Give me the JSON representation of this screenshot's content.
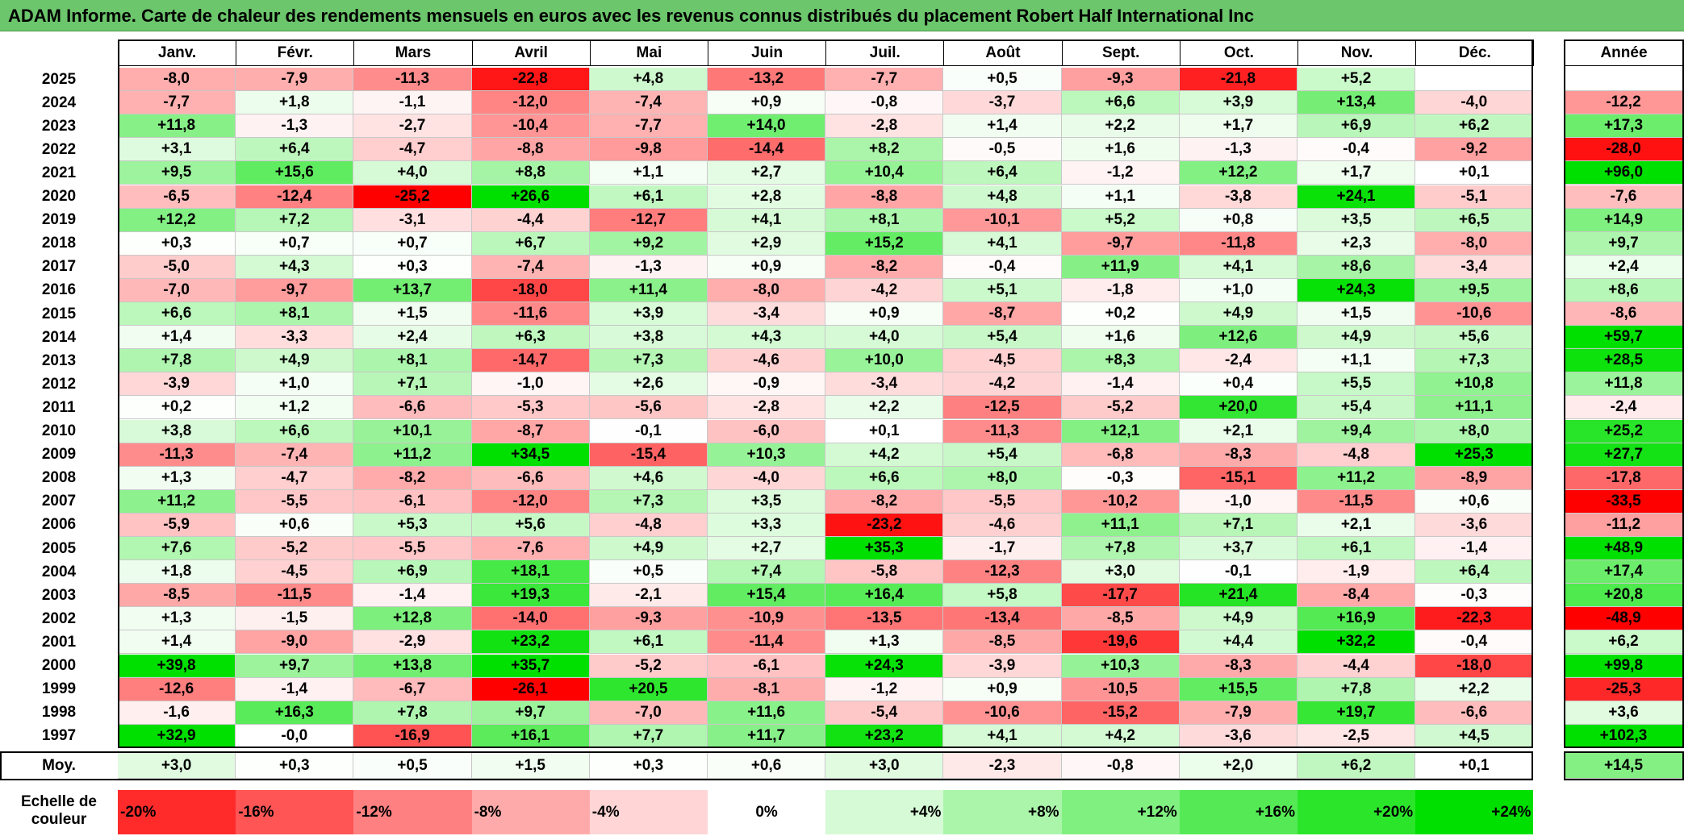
{
  "title": "ADAM Informe. Carte de chaleur des rendements mensuels en euros avec les revenus connus distribués du placement Robert Half International Inc",
  "chart_data": {
    "type": "heatmap",
    "title": "ADAM Informe. Carte de chaleur des rendements mensuels en euros avec les revenus connus distribués du placement Robert Half International Inc",
    "columns": [
      "Janv.",
      "Févr.",
      "Mars",
      "Avril",
      "Mai",
      "Juin",
      "Juil.",
      "Août",
      "Sept.",
      "Oct.",
      "Nov.",
      "Déc."
    ],
    "annual_label": "Année",
    "rows": [
      {
        "year": "2025",
        "months": [
          "-8,0",
          "-7,9",
          "-11,3",
          "-22,8",
          "+4,8",
          "-13,2",
          "-7,7",
          "+0,5",
          "-9,3",
          "-21,8",
          "+5,2",
          ""
        ],
        "annual": ""
      },
      {
        "year": "2024",
        "months": [
          "-7,7",
          "+1,8",
          "-1,1",
          "-12,0",
          "-7,4",
          "+0,9",
          "-0,8",
          "-3,7",
          "+6,6",
          "+3,9",
          "+13,4",
          "-4,0"
        ],
        "annual": "-12,2"
      },
      {
        "year": "2023",
        "months": [
          "+11,8",
          "-1,3",
          "-2,7",
          "-10,4",
          "-7,7",
          "+14,0",
          "-2,8",
          "+1,4",
          "+2,2",
          "+1,7",
          "+6,9",
          "+6,2"
        ],
        "annual": "+17,3"
      },
      {
        "year": "2022",
        "months": [
          "+3,1",
          "+6,4",
          "-4,7",
          "-8,8",
          "-9,8",
          "-14,4",
          "+8,2",
          "-0,5",
          "+1,6",
          "-1,3",
          "-0,4",
          "-9,2"
        ],
        "annual": "-28,0"
      },
      {
        "year": "2021",
        "months": [
          "+9,5",
          "+15,6",
          "+4,0",
          "+8,8",
          "+1,1",
          "+2,7",
          "+10,4",
          "+6,4",
          "-1,2",
          "+12,2",
          "+1,7",
          "+0,1"
        ],
        "annual": "+96,0"
      },
      {
        "year": "2020",
        "months": [
          "-6,5",
          "-12,4",
          "-25,2",
          "+26,6",
          "+6,1",
          "+2,8",
          "-8,8",
          "+4,8",
          "+1,1",
          "-3,8",
          "+24,1",
          "-5,1"
        ],
        "annual": "-7,6"
      },
      {
        "year": "2019",
        "months": [
          "+12,2",
          "+7,2",
          "-3,1",
          "-4,4",
          "-12,7",
          "+4,1",
          "+8,1",
          "-10,1",
          "+5,2",
          "+0,8",
          "+3,5",
          "+6,5"
        ],
        "annual": "+14,9"
      },
      {
        "year": "2018",
        "months": [
          "+0,3",
          "+0,7",
          "+0,7",
          "+6,7",
          "+9,2",
          "+2,9",
          "+15,2",
          "+4,1",
          "-9,7",
          "-11,8",
          "+2,3",
          "-8,0"
        ],
        "annual": "+9,7"
      },
      {
        "year": "2017",
        "months": [
          "-5,0",
          "+4,3",
          "+0,3",
          "-7,4",
          "-1,3",
          "+0,9",
          "-8,2",
          "-0,4",
          "+11,9",
          "+4,1",
          "+8,6",
          "-3,4"
        ],
        "annual": "+2,4"
      },
      {
        "year": "2016",
        "months": [
          "-7,0",
          "-9,7",
          "+13,7",
          "-18,0",
          "+11,4",
          "-8,0",
          "-4,2",
          "+5,1",
          "-1,8",
          "+1,0",
          "+24,3",
          "+9,5"
        ],
        "annual": "+8,6"
      },
      {
        "year": "2015",
        "months": [
          "+6,6",
          "+8,1",
          "+1,5",
          "-11,6",
          "+3,9",
          "-3,4",
          "+0,9",
          "-8,7",
          "+0,2",
          "+4,9",
          "+1,5",
          "-10,6"
        ],
        "annual": "-8,6"
      },
      {
        "year": "2014",
        "months": [
          "+1,4",
          "-3,3",
          "+2,4",
          "+6,3",
          "+3,8",
          "+4,3",
          "+4,0",
          "+5,4",
          "+1,6",
          "+12,6",
          "+4,9",
          "+5,6"
        ],
        "annual": "+59,7"
      },
      {
        "year": "2013",
        "months": [
          "+7,8",
          "+4,9",
          "+8,1",
          "-14,7",
          "+7,3",
          "-4,6",
          "+10,0",
          "-4,5",
          "+8,3",
          "-2,4",
          "+1,1",
          "+7,3"
        ],
        "annual": "+28,5"
      },
      {
        "year": "2012",
        "months": [
          "-3,9",
          "+1,0",
          "+7,1",
          "-1,0",
          "+2,6",
          "-0,9",
          "-3,4",
          "-4,2",
          "-1,4",
          "+0,4",
          "+5,5",
          "+10,8"
        ],
        "annual": "+11,8"
      },
      {
        "year": "2011",
        "months": [
          "+0,2",
          "+1,2",
          "-6,6",
          "-5,3",
          "-5,6",
          "-2,8",
          "+2,2",
          "-12,5",
          "-5,2",
          "+20,0",
          "+5,4",
          "+11,1"
        ],
        "annual": "-2,4"
      },
      {
        "year": "2010",
        "months": [
          "+3,8",
          "+6,6",
          "+10,1",
          "-8,7",
          "-0,1",
          "-6,0",
          "+0,1",
          "-11,3",
          "+12,1",
          "+2,1",
          "+9,4",
          "+8,0"
        ],
        "annual": "+25,2"
      },
      {
        "year": "2009",
        "months": [
          "-11,3",
          "-7,4",
          "+11,2",
          "+34,5",
          "-15,4",
          "+10,3",
          "+4,2",
          "+5,4",
          "-6,8",
          "-8,3",
          "-4,8",
          "+25,3"
        ],
        "annual": "+27,7"
      },
      {
        "year": "2008",
        "months": [
          "+1,3",
          "-4,7",
          "-8,2",
          "-6,6",
          "+4,6",
          "-4,0",
          "+6,6",
          "+8,0",
          "-0,3",
          "-15,1",
          "+11,2",
          "-8,9"
        ],
        "annual": "-17,8"
      },
      {
        "year": "2007",
        "months": [
          "+11,2",
          "-5,5",
          "-6,1",
          "-12,0",
          "+7,3",
          "+3,5",
          "-8,2",
          "-5,5",
          "-10,2",
          "-1,0",
          "-11,5",
          "+0,6"
        ],
        "annual": "-33,5"
      },
      {
        "year": "2006",
        "months": [
          "-5,9",
          "+0,6",
          "+5,3",
          "+5,6",
          "-4,8",
          "+3,3",
          "-23,2",
          "-4,6",
          "+11,1",
          "+7,1",
          "+2,1",
          "-3,6"
        ],
        "annual": "-11,2"
      },
      {
        "year": "2005",
        "months": [
          "+7,6",
          "-5,2",
          "-5,5",
          "-7,6",
          "+4,9",
          "+2,7",
          "+35,3",
          "-1,7",
          "+7,8",
          "+3,7",
          "+6,1",
          "-1,4"
        ],
        "annual": "+48,9"
      },
      {
        "year": "2004",
        "months": [
          "+1,8",
          "-4,5",
          "+6,9",
          "+18,1",
          "+0,5",
          "+7,4",
          "-5,8",
          "-12,3",
          "+3,0",
          "-0,1",
          "-1,9",
          "+6,4"
        ],
        "annual": "+17,4"
      },
      {
        "year": "2003",
        "months": [
          "-8,5",
          "-11,5",
          "-1,4",
          "+19,3",
          "-2,1",
          "+15,4",
          "+16,4",
          "+5,8",
          "-17,7",
          "+21,4",
          "-8,4",
          "-0,3"
        ],
        "annual": "+20,8"
      },
      {
        "year": "2002",
        "months": [
          "+1,3",
          "-1,5",
          "+12,8",
          "-14,0",
          "-9,3",
          "-10,9",
          "-13,5",
          "-13,4",
          "-8,5",
          "+4,9",
          "+16,9",
          "-22,3"
        ],
        "annual": "-48,9"
      },
      {
        "year": "2001",
        "months": [
          "+1,4",
          "-9,0",
          "-2,9",
          "+23,2",
          "+6,1",
          "-11,4",
          "+1,3",
          "-8,5",
          "-19,6",
          "+4,4",
          "+32,2",
          "-0,4"
        ],
        "annual": "+6,2"
      },
      {
        "year": "2000",
        "months": [
          "+39,8",
          "+9,7",
          "+13,8",
          "+35,7",
          "-5,2",
          "-6,1",
          "+24,3",
          "-3,9",
          "+10,3",
          "-8,3",
          "-4,4",
          "-18,0"
        ],
        "annual": "+99,8"
      },
      {
        "year": "1999",
        "months": [
          "-12,6",
          "-1,4",
          "-6,7",
          "-26,1",
          "+20,5",
          "-8,1",
          "-1,2",
          "+0,9",
          "-10,5",
          "+15,5",
          "+7,8",
          "+2,2"
        ],
        "annual": "-25,3"
      },
      {
        "year": "1998",
        "months": [
          "-1,6",
          "+16,3",
          "+7,8",
          "+9,7",
          "-7,0",
          "+11,6",
          "-5,4",
          "-10,6",
          "-15,2",
          "-7,9",
          "+19,7",
          "-6,6"
        ],
        "annual": "+3,6"
      },
      {
        "year": "1997",
        "months": [
          "+32,9",
          "-0,0",
          "-16,9",
          "+16,1",
          "+7,7",
          "+11,7",
          "+23,2",
          "+4,1",
          "+4,2",
          "-3,6",
          "-2,5",
          "+4,5"
        ],
        "annual": "+102,3"
      }
    ],
    "average": {
      "label": "Moy.",
      "months": [
        "+3,0",
        "+0,3",
        "+0,5",
        "+1,5",
        "+0,3",
        "+0,6",
        "+3,0",
        "-2,3",
        "-0,8",
        "+2,0",
        "+6,2",
        "+0,1"
      ],
      "annual": "+14,5"
    },
    "color_scale": {
      "label": "Echelle de couleur",
      "steps": [
        "-20%",
        "-16%",
        "-12%",
        "-8%",
        "-4%",
        "0%",
        "+4%",
        "+8%",
        "+12%",
        "+16%",
        "+20%",
        "+24%"
      ]
    },
    "colors": {
      "strong_negative": "#ff0000",
      "neutral": "#ffffff",
      "strong_positive": "#00e000",
      "title_bar": "#6cc66c"
    }
  }
}
